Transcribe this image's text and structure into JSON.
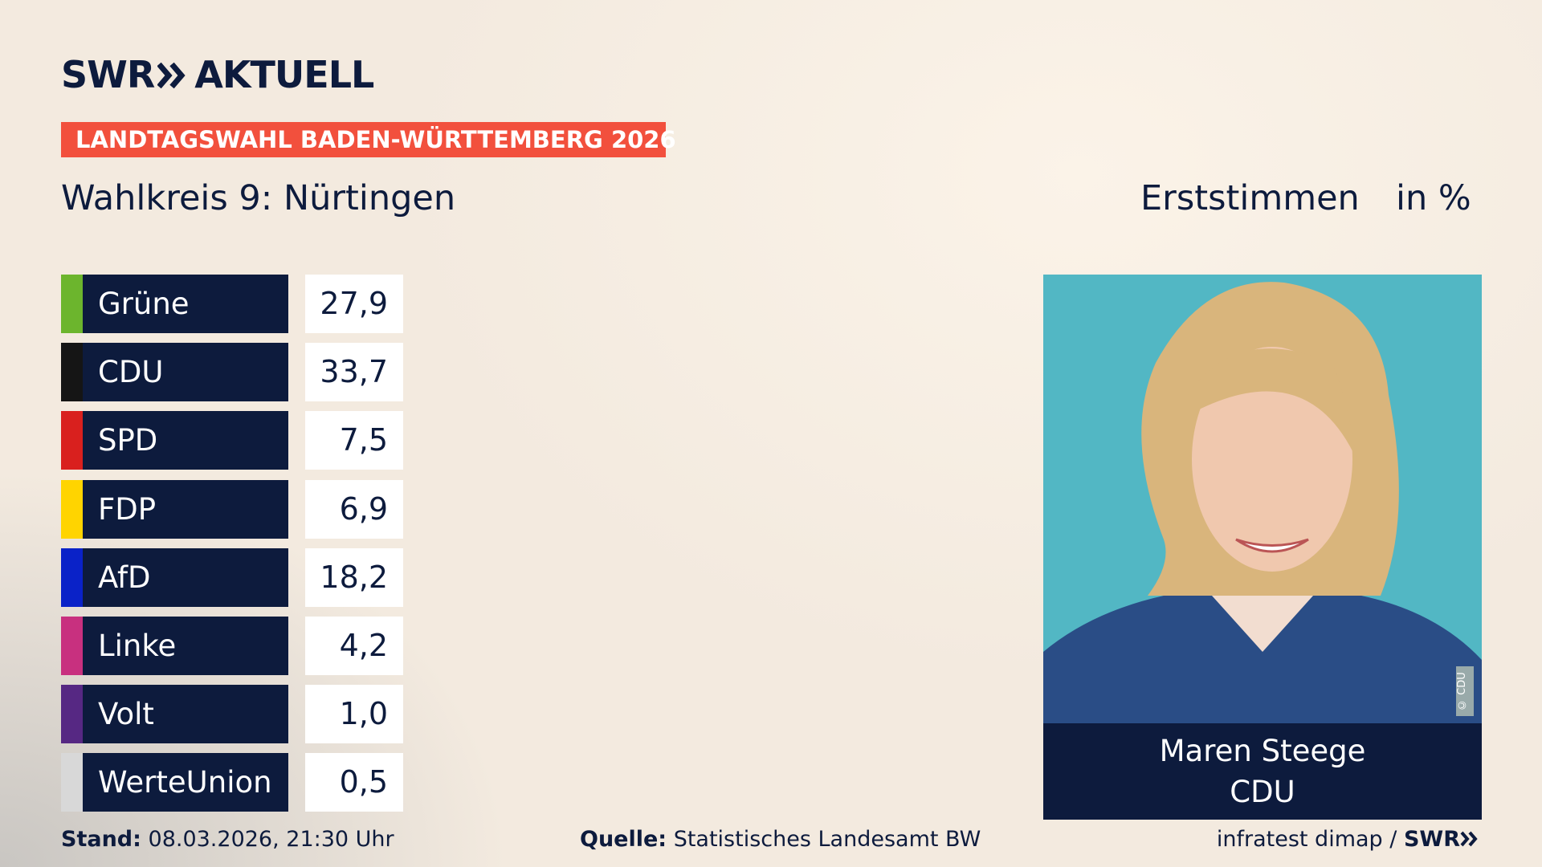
{
  "header": {
    "logo_left": "SWR",
    "logo_right": "AKTUELL",
    "banner": "LANDTAGSWAHL BADEN-WÜRTTEMBERG 2026",
    "subtitle": "Wahlkreis 9: Nürtingen",
    "vote_type": "Erststimmen",
    "unit": "in %"
  },
  "table": {
    "rows": [
      [
        "Grüne",
        "27,9",
        "#6cb52d"
      ],
      [
        "CDU",
        "33,7",
        "#151515"
      ],
      [
        "SPD",
        "7,5",
        "#d9201e"
      ],
      [
        "FDP",
        "6,9",
        "#ffd400"
      ],
      [
        "AfD",
        "18,2",
        "#0a22c8"
      ],
      [
        "Linke",
        "4,2",
        "#c8307f"
      ],
      [
        "Volt",
        "1,0",
        "#562883"
      ],
      [
        "WerteUnion",
        "0,5",
        "#d8d8d8"
      ]
    ]
  },
  "candidate": {
    "name": "Maren Steege",
    "party": "CDU",
    "credit": "© CDU"
  },
  "footer": {
    "stand_label": "Stand:",
    "stand": "08.03.2026, 21:30 Uhr",
    "source_label": "Quelle:",
    "source": "Statistisches Landesamt BW",
    "institute": "infratest dimap /",
    "brand": "SWR"
  }
}
